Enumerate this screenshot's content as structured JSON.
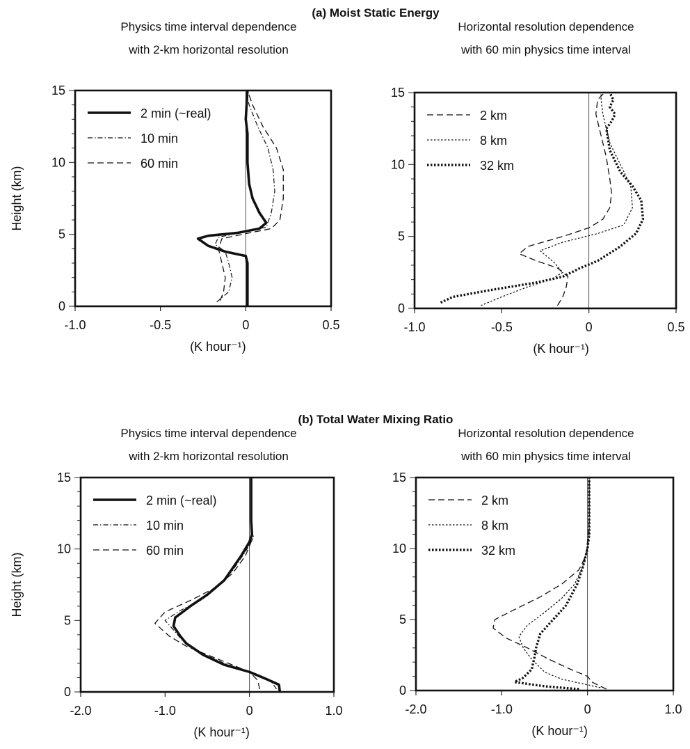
{
  "figure": {
    "section_a": "(a)  Moist Static Energy",
    "section_b": "(b)  Total Water Mixing Ratio"
  },
  "chart_data": [
    {
      "type": "line",
      "id": "a_left",
      "subtitle_lines": [
        "Physics time interval dependence",
        "with 2-km horizontal resolution"
      ],
      "xlabel": "(K hour⁻¹)",
      "ylabel": "Height (km)",
      "xlim": [
        -1.0,
        0.5
      ],
      "ylim": [
        0,
        15
      ],
      "xticks": [
        "-1.0",
        "-0.5",
        "0",
        "0.5"
      ],
      "yticks": [
        "0",
        "5",
        "10",
        "15"
      ],
      "legend": "top-left",
      "series": [
        {
          "name": "2  min (~real)",
          "style": "thick",
          "points": [
            [
              0.01,
              0
            ],
            [
              0.01,
              1
            ],
            [
              0.01,
              2
            ],
            [
              0.01,
              3
            ],
            [
              0.0,
              3.5
            ],
            [
              -0.12,
              3.8
            ],
            [
              -0.22,
              4.2
            ],
            [
              -0.28,
              4.7
            ],
            [
              -0.22,
              4.9
            ],
            [
              -0.05,
              5.1
            ],
            [
              0.08,
              5.4
            ],
            [
              0.12,
              5.8
            ],
            [
              0.08,
              6.5
            ],
            [
              0.04,
              7.5
            ],
            [
              0.02,
              8.5
            ],
            [
              0.01,
              10
            ],
            [
              0.01,
              12
            ],
            [
              0.0,
              13
            ],
            [
              0.01,
              15
            ]
          ]
        },
        {
          "name": "10 min",
          "style": "dashdot",
          "points": [
            [
              -0.17,
              0.3
            ],
            [
              -0.1,
              1
            ],
            [
              -0.08,
              2
            ],
            [
              -0.1,
              3
            ],
            [
              -0.12,
              3.8
            ],
            [
              -0.18,
              4.3
            ],
            [
              -0.16,
              4.8
            ],
            [
              0.0,
              5.2
            ],
            [
              0.12,
              5.5
            ],
            [
              0.15,
              6.5
            ],
            [
              0.17,
              8
            ],
            [
              0.16,
              9.5
            ],
            [
              0.13,
              11
            ],
            [
              0.07,
              12.5
            ],
            [
              0.02,
              14
            ],
            [
              0.0,
              15
            ]
          ]
        },
        {
          "name": "60 min",
          "style": "dashed",
          "points": [
            [
              -0.15,
              0.4
            ],
            [
              -0.13,
              1
            ],
            [
              -0.12,
              2
            ],
            [
              -0.14,
              3
            ],
            [
              -0.16,
              4
            ],
            [
              -0.14,
              4.7
            ],
            [
              0.02,
              5.1
            ],
            [
              0.15,
              5.4
            ],
            [
              0.2,
              6
            ],
            [
              0.22,
              7.5
            ],
            [
              0.22,
              9.5
            ],
            [
              0.18,
              11
            ],
            [
              0.1,
              12.5
            ],
            [
              0.04,
              14
            ],
            [
              0.01,
              15
            ]
          ]
        }
      ]
    },
    {
      "type": "line",
      "id": "a_right",
      "subtitle_lines": [
        "Horizontal resolution dependence",
        "with 60 min physics time interval"
      ],
      "xlabel": "(K hour⁻¹)",
      "ylabel": "",
      "xlim": [
        -1.0,
        0.5
      ],
      "ylim": [
        0,
        15
      ],
      "xticks": [
        "-1.0",
        "-0.5",
        "0",
        "0.5"
      ],
      "yticks": [
        "0",
        "5",
        "10",
        "15"
      ],
      "legend": "top-left",
      "series": [
        {
          "name": "2 km",
          "style": "dashed",
          "points": [
            [
              -0.18,
              0.2
            ],
            [
              -0.15,
              0.8
            ],
            [
              -0.13,
              1.5
            ],
            [
              -0.12,
              2.2
            ],
            [
              -0.18,
              2.8
            ],
            [
              -0.3,
              3.3
            ],
            [
              -0.4,
              3.8
            ],
            [
              -0.35,
              4.3
            ],
            [
              -0.15,
              5
            ],
            [
              0.0,
              5.6
            ],
            [
              0.08,
              6.2
            ],
            [
              0.12,
              7
            ],
            [
              0.13,
              8
            ],
            [
              0.12,
              9
            ],
            [
              0.1,
              10.5
            ],
            [
              0.07,
              12
            ],
            [
              0.04,
              13.5
            ],
            [
              0.05,
              14.5
            ],
            [
              0.09,
              15
            ]
          ]
        },
        {
          "name": "8 km",
          "style": "dotted",
          "points": [
            [
              -0.62,
              0.2
            ],
            [
              -0.5,
              0.8
            ],
            [
              -0.35,
              1.5
            ],
            [
              -0.22,
              2
            ],
            [
              -0.15,
              2.5
            ],
            [
              -0.2,
              3.2
            ],
            [
              -0.28,
              4
            ],
            [
              -0.15,
              4.6
            ],
            [
              0.05,
              5.2
            ],
            [
              0.2,
              5.8
            ],
            [
              0.25,
              7
            ],
            [
              0.24,
              8.5
            ],
            [
              0.18,
              10
            ],
            [
              0.12,
              11.5
            ],
            [
              0.1,
              12.5
            ],
            [
              0.08,
              13.5
            ],
            [
              0.07,
              14.5
            ],
            [
              0.07,
              15
            ]
          ]
        },
        {
          "name": "32 km",
          "style": "thickdotted",
          "points": [
            [
              -0.85,
              0.4
            ],
            [
              -0.78,
              0.8
            ],
            [
              -0.55,
              1.3
            ],
            [
              -0.3,
              1.8
            ],
            [
              -0.15,
              2.2
            ],
            [
              -0.05,
              2.8
            ],
            [
              0.05,
              3.3
            ],
            [
              0.18,
              4.3
            ],
            [
              0.27,
              5.2
            ],
            [
              0.31,
              6.2
            ],
            [
              0.3,
              7.5
            ],
            [
              0.25,
              8.5
            ],
            [
              0.18,
              9.5
            ],
            [
              0.12,
              11
            ],
            [
              0.1,
              12.5
            ],
            [
              0.13,
              13
            ],
            [
              0.15,
              13.5
            ],
            [
              0.12,
              14
            ],
            [
              0.14,
              14.5
            ],
            [
              0.12,
              15
            ]
          ]
        }
      ]
    },
    {
      "type": "line",
      "id": "b_left",
      "subtitle_lines": [
        "Physics time interval dependence",
        "with 2-km horizontal resolution"
      ],
      "xlabel": "(K hour⁻¹)",
      "ylabel": "Height (km)",
      "xlim": [
        -2.0,
        1.0
      ],
      "ylim": [
        0,
        15
      ],
      "xticks": [
        "-2.0",
        "-1.0",
        "0",
        "1.0"
      ],
      "yticks": [
        "0",
        "5",
        "10",
        "15"
      ],
      "legend": "top-left",
      "series": [
        {
          "name": "2  min (~real)",
          "style": "thick",
          "points": [
            [
              0.36,
              0
            ],
            [
              0.35,
              0.5
            ],
            [
              0.2,
              0.9
            ],
            [
              0.0,
              1.4
            ],
            [
              -0.3,
              1.9
            ],
            [
              -0.55,
              2.6
            ],
            [
              -0.75,
              3.4
            ],
            [
              -0.82,
              3.9
            ],
            [
              -0.9,
              4.6
            ],
            [
              -0.88,
              5.2
            ],
            [
              -0.7,
              6
            ],
            [
              -0.5,
              6.8
            ],
            [
              -0.3,
              7.8
            ],
            [
              -0.1,
              9.5
            ],
            [
              0.0,
              10.5
            ],
            [
              0.03,
              11
            ],
            [
              0.02,
              12
            ],
            [
              0.02,
              15
            ]
          ]
        },
        {
          "name": "10 min",
          "style": "dashdot",
          "points": [
            [
              0.32,
              0.2
            ],
            [
              0.25,
              0.8
            ],
            [
              0.05,
              1.3
            ],
            [
              -0.3,
              2
            ],
            [
              -0.6,
              2.8
            ],
            [
              -0.78,
              3.5
            ],
            [
              -0.88,
              4.2
            ],
            [
              -1.0,
              5
            ],
            [
              -0.82,
              5.7
            ],
            [
              -0.55,
              6.5
            ],
            [
              -0.35,
              7.5
            ],
            [
              -0.2,
              8.5
            ],
            [
              -0.05,
              9.8
            ],
            [
              0.05,
              10.8
            ],
            [
              0.02,
              11.5
            ],
            [
              0.02,
              15
            ]
          ]
        },
        {
          "name": "60 min",
          "style": "dashed",
          "points": [
            [
              0.12,
              0.2
            ],
            [
              0.1,
              0.8
            ],
            [
              0.0,
              1.4
            ],
            [
              -0.25,
              2
            ],
            [
              -0.5,
              2.6
            ],
            [
              -0.75,
              3.2
            ],
            [
              -0.95,
              3.9
            ],
            [
              -1.12,
              4.8
            ],
            [
              -1.0,
              5.6
            ],
            [
              -0.7,
              6.4
            ],
            [
              -0.4,
              7.3
            ],
            [
              -0.2,
              8.3
            ],
            [
              -0.05,
              9.5
            ],
            [
              0.02,
              10.5
            ],
            [
              0.02,
              11
            ],
            [
              0.02,
              15
            ]
          ]
        }
      ]
    },
    {
      "type": "line",
      "id": "b_right",
      "subtitle_lines": [
        "Horizontal resolution dependence",
        "with 60 min physics time interval"
      ],
      "xlabel": "(K hour⁻¹)",
      "ylabel": "",
      "xlim": [
        -2.0,
        1.0
      ],
      "ylim": [
        0,
        15
      ],
      "xticks": [
        "-2.0",
        "-1.0",
        "0",
        "1.0"
      ],
      "yticks": [
        "0",
        "5",
        "10",
        "15"
      ],
      "legend": "top-left",
      "series": [
        {
          "name": "2 km",
          "style": "dashed",
          "points": [
            [
              0.22,
              0.1
            ],
            [
              0.05,
              0.6
            ],
            [
              0.0,
              1
            ],
            [
              -0.2,
              1.5
            ],
            [
              -0.45,
              2.2
            ],
            [
              -0.7,
              3
            ],
            [
              -0.95,
              3.7
            ],
            [
              -1.1,
              4.4
            ],
            [
              -1.08,
              5
            ],
            [
              -0.85,
              5.7
            ],
            [
              -0.55,
              6.6
            ],
            [
              -0.3,
              7.5
            ],
            [
              -0.1,
              8.5
            ],
            [
              -0.02,
              9.5
            ],
            [
              0.0,
              10.5
            ],
            [
              0.02,
              12
            ],
            [
              0.02,
              15
            ]
          ]
        },
        {
          "name": "8 km",
          "style": "dotted",
          "points": [
            [
              0.15,
              0.2
            ],
            [
              0.0,
              0.4
            ],
            [
              -0.3,
              0.8
            ],
            [
              -0.5,
              1.3
            ],
            [
              -0.65,
              2.2
            ],
            [
              -0.75,
              3
            ],
            [
              -0.8,
              3.8
            ],
            [
              -0.7,
              4.6
            ],
            [
              -0.5,
              5.5
            ],
            [
              -0.3,
              6.5
            ],
            [
              -0.15,
              7.5
            ],
            [
              -0.05,
              8.8
            ],
            [
              0.0,
              10
            ],
            [
              0.02,
              11
            ],
            [
              0.02,
              12.5
            ],
            [
              0.02,
              15
            ]
          ]
        },
        {
          "name": "32 km",
          "style": "thickdotted",
          "points": [
            [
              -0.1,
              0.1
            ],
            [
              -0.5,
              0.3
            ],
            [
              -0.85,
              0.6
            ],
            [
              -0.75,
              0.9
            ],
            [
              -0.65,
              1.5
            ],
            [
              -0.62,
              2.3
            ],
            [
              -0.6,
              3
            ],
            [
              -0.55,
              4
            ],
            [
              -0.4,
              5
            ],
            [
              -0.25,
              6
            ],
            [
              -0.12,
              7.5
            ],
            [
              -0.05,
              8.8
            ],
            [
              0.0,
              10
            ],
            [
              0.02,
              11
            ],
            [
              0.02,
              12
            ],
            [
              0.02,
              15
            ]
          ]
        }
      ]
    }
  ]
}
